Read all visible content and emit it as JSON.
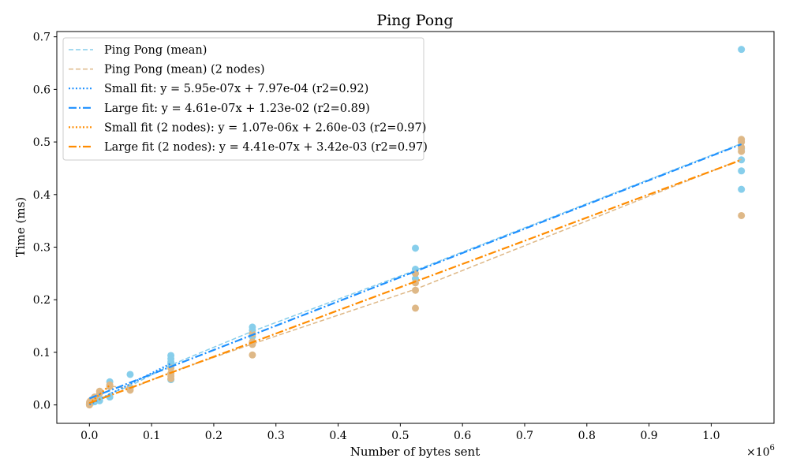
{
  "chart_data": {
    "type": "scatter",
    "title": "Ping Pong",
    "xlabel": "Number of bytes sent",
    "ylabel": "Time (ms)",
    "x_multiplier_label": "×10",
    "x_multiplier_exp": "6",
    "xlim": [
      -52429,
      1101005
    ],
    "ylim": [
      -0.035,
      0.71
    ],
    "x_ticks": [
      0,
      100000,
      200000,
      300000,
      400000,
      500000,
      600000,
      700000,
      800000,
      900000,
      1000000
    ],
    "x_tick_labels": [
      "0.0",
      "0.1",
      "0.2",
      "0.3",
      "0.4",
      "0.5",
      "0.6",
      "0.7",
      "0.8",
      "0.9",
      "1.0"
    ],
    "y_ticks": [
      0,
      0.1,
      0.2,
      0.3,
      0.4,
      0.5,
      0.6,
      0.7
    ],
    "y_tick_labels": [
      "0.0",
      "0.1",
      "0.2",
      "0.3",
      "0.4",
      "0.5",
      "0.6",
      "0.7"
    ],
    "grid": false,
    "legend_position": "top-left",
    "colors": {
      "mean": "#87ceeb",
      "mean_2nodes": "#deb887",
      "small_fit": "#1e90ff",
      "large_fit": "#1e90ff",
      "small_fit_2nodes": "#ff8c00",
      "large_fit_2nodes": "#ff8c00"
    },
    "scatter_series": [
      {
        "key": "samples",
        "color": "#87ceeb",
        "points": [
          [
            64,
            0.001
          ],
          [
            128,
            0.002
          ],
          [
            256,
            0.002
          ],
          [
            512,
            0.003
          ],
          [
            1024,
            0.003
          ],
          [
            2048,
            0.004
          ],
          [
            4096,
            0.005
          ],
          [
            8192,
            0.006
          ],
          [
            16384,
            0.008
          ],
          [
            16384,
            0.012
          ],
          [
            32768,
            0.015
          ],
          [
            32768,
            0.044
          ],
          [
            65536,
            0.058
          ],
          [
            65536,
            0.032
          ],
          [
            131072,
            0.094
          ],
          [
            131072,
            0.088
          ],
          [
            131072,
            0.082
          ],
          [
            131072,
            0.078
          ],
          [
            131072,
            0.048
          ],
          [
            262144,
            0.148
          ],
          [
            262144,
            0.142
          ],
          [
            262144,
            0.13
          ],
          [
            524288,
            0.298
          ],
          [
            524288,
            0.258
          ],
          [
            524288,
            0.25
          ],
          [
            524288,
            0.24
          ],
          [
            1048576,
            0.676
          ],
          [
            1048576,
            0.487
          ],
          [
            1048576,
            0.466
          ],
          [
            1048576,
            0.445
          ],
          [
            1048576,
            0.41
          ]
        ]
      },
      {
        "key": "samples_2nodes",
        "color": "#deb887",
        "points": [
          [
            64,
            0.0
          ],
          [
            128,
            0.003
          ],
          [
            256,
            0.004
          ],
          [
            512,
            0.006
          ],
          [
            2048,
            0.008
          ],
          [
            4096,
            0.01
          ],
          [
            8192,
            0.015
          ],
          [
            16384,
            0.022
          ],
          [
            16384,
            0.026
          ],
          [
            32768,
            0.035
          ],
          [
            32768,
            0.038
          ],
          [
            65536,
            0.028
          ],
          [
            65536,
            0.033
          ],
          [
            131072,
            0.07
          ],
          [
            131072,
            0.06
          ],
          [
            131072,
            0.055
          ],
          [
            131072,
            0.05
          ],
          [
            262144,
            0.135
          ],
          [
            262144,
            0.12
          ],
          [
            262144,
            0.115
          ],
          [
            262144,
            0.095
          ],
          [
            524288,
            0.25
          ],
          [
            524288,
            0.232
          ],
          [
            524288,
            0.218
          ],
          [
            524288,
            0.184
          ],
          [
            1048576,
            0.505
          ],
          [
            1048576,
            0.5
          ],
          [
            1048576,
            0.49
          ],
          [
            1048576,
            0.482
          ],
          [
            1048576,
            0.36
          ]
        ]
      }
    ],
    "line_series": [
      {
        "key": "mean",
        "name": "Ping Pong (mean)",
        "color": "#87ceeb",
        "dash": "6,3",
        "width": 1.5,
        "points": [
          [
            64,
            0.002
          ],
          [
            16384,
            0.01
          ],
          [
            32768,
            0.022
          ],
          [
            65536,
            0.036
          ],
          [
            131072,
            0.076
          ],
          [
            262144,
            0.14
          ],
          [
            524288,
            0.256
          ],
          [
            1048576,
            0.497
          ]
        ]
      },
      {
        "key": "mean_2nodes",
        "name": "Ping Pong (mean) (2 nodes)",
        "color": "#deb887",
        "dash": "6,3",
        "width": 1.5,
        "points": [
          [
            64,
            0.003
          ],
          [
            16384,
            0.018
          ],
          [
            32768,
            0.036
          ],
          [
            65536,
            0.031
          ],
          [
            131072,
            0.062
          ],
          [
            262144,
            0.116
          ],
          [
            524288,
            0.22
          ],
          [
            1048576,
            0.467
          ]
        ]
      },
      {
        "key": "small_fit",
        "name": "Small fit: y = 5.95e-07x + 7.97e-04 (r2=0.92)",
        "color": "#1e90ff",
        "dash": "2,2.5",
        "width": 2.2,
        "slope": 5.95e-07,
        "intercept": 0.000797,
        "x_range": [
          0,
          131072
        ]
      },
      {
        "key": "large_fit",
        "name": "Large fit: y = 4.61e-07x + 1.23e-02 (r2=0.89)",
        "color": "#1e90ff",
        "dash": "10,3,2,3",
        "width": 2.2,
        "slope": 4.61e-07,
        "intercept": 0.0123,
        "x_range": [
          0,
          1048576
        ]
      },
      {
        "key": "small_fit_2nodes",
        "name": "Small fit (2 nodes): y = 1.07e-06x + 2.60e-03 (r2=0.97)",
        "color": "#ff8c00",
        "dash": "2,2.5",
        "width": 2.2,
        "slope": 1.07e-06,
        "intercept": 0.0026,
        "x_range": [
          0,
          32768
        ]
      },
      {
        "key": "large_fit_2nodes",
        "name": "Large fit (2 nodes): y = 4.41e-07x + 3.42e-03 (r2=0.97)",
        "color": "#ff8c00",
        "dash": "10,3,2,3",
        "width": 2.2,
        "slope": 4.41e-07,
        "intercept": 0.00342,
        "x_range": [
          0,
          1048576
        ]
      }
    ]
  }
}
